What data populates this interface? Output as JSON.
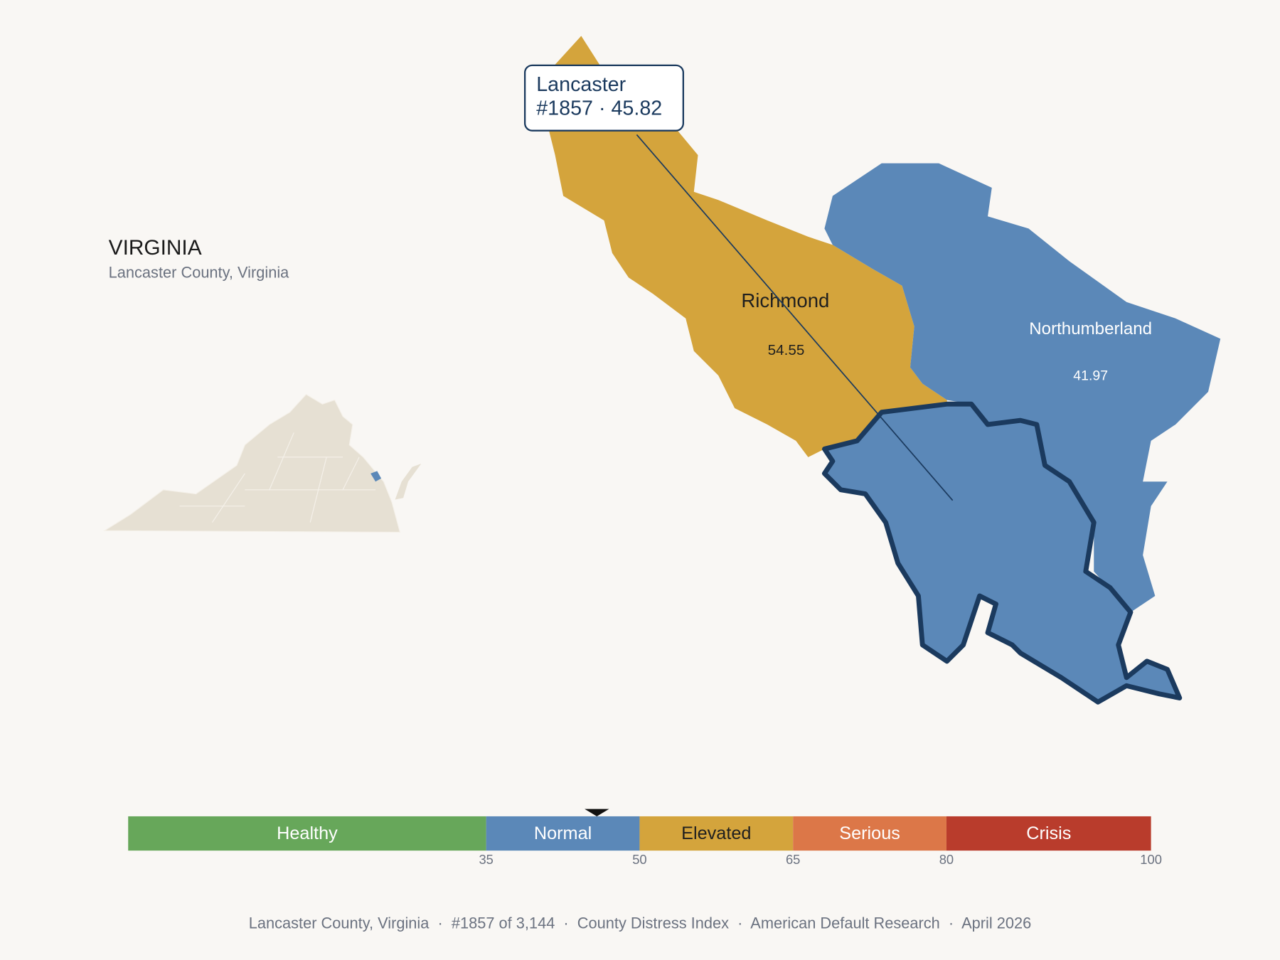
{
  "header": {
    "title": "VIRGINIA",
    "subtitle": "Lancaster County, Virginia"
  },
  "counties": [
    {
      "name": "Richmond",
      "value": 54.55,
      "color": "#d4a43c"
    },
    {
      "name": "Northumberland",
      "value": 41.97,
      "color": "#5b88b8"
    },
    {
      "name": "Lancaster",
      "value": 45.82,
      "color": "#5b88b8"
    }
  ],
  "tooltip": {
    "title": "Lancaster",
    "detail": "#1857 · 45.82"
  },
  "scale": {
    "range": [
      0,
      100
    ],
    "marker": 45.82,
    "bands": [
      {
        "label": "Healthy",
        "max": 35,
        "color": "#67a75a",
        "label_color": "#ffffff"
      },
      {
        "label": "Normal",
        "max": 50,
        "color": "#5b88b8",
        "label_color": "#ffffff"
      },
      {
        "label": "Elevated",
        "max": 65,
        "color": "#d4a43c",
        "label_color": "#1f1f1f"
      },
      {
        "label": "Serious",
        "max": 80,
        "color": "#dc7748",
        "label_color": "#ffffff"
      },
      {
        "label": "Crisis",
        "max": 100,
        "color": "#b93c2c",
        "label_color": "#ffffff"
      }
    ]
  },
  "footer": "Lancaster County, Virginia  ·  #1857 of 3,144  ·  County Distress Index  ·  American Default Research  ·  April 2026"
}
